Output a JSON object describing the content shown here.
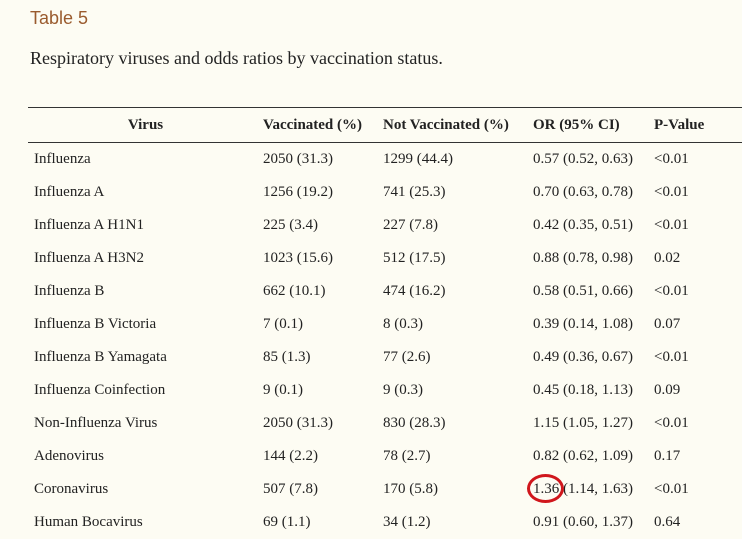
{
  "table_label": "Table 5",
  "caption": "Respiratory viruses and odds ratios by vaccination status.",
  "columns": [
    "Virus",
    "Vaccinated (%)",
    "Not Vaccinated (%)",
    "OR (95% CI)",
    "P-Value"
  ],
  "rows": [
    [
      "Influenza",
      "2050 (31.3)",
      "1299 (44.4)",
      "0.57 (0.52, 0.63)",
      "<0.01"
    ],
    [
      "Influenza A",
      "1256 (19.2)",
      "741 (25.3)",
      "0.70 (0.63, 0.78)",
      "<0.01"
    ],
    [
      "Influenza A H1N1",
      "225 (3.4)",
      "227 (7.8)",
      "0.42 (0.35, 0.51)",
      "<0.01"
    ],
    [
      "Influenza A H3N2",
      "1023 (15.6)",
      "512 (17.5)",
      "0.88 (0.78, 0.98)",
      "0.02"
    ],
    [
      "Influenza B",
      "662 (10.1)",
      "474 (16.2)",
      "0.58 (0.51, 0.66)",
      "<0.01"
    ],
    [
      "Influenza B Victoria",
      "7 (0.1)",
      "8 (0.3)",
      "0.39 (0.14, 1.08)",
      "0.07"
    ],
    [
      "Influenza B Yamagata",
      "85 (1.3)",
      "77 (2.6)",
      "0.49 (0.36, 0.67)",
      "<0.01"
    ],
    [
      "Influenza Coinfection",
      "9 (0.1)",
      "9 (0.3)",
      "0.45 (0.18, 1.13)",
      "0.09"
    ],
    [
      "Non-Influenza Virus",
      "2050 (31.3)",
      "830 (28.3)",
      "1.15 (1.05, 1.27)",
      "<0.01"
    ],
    [
      "Adenovirus",
      "144 (2.2)",
      "78 (2.7)",
      "0.82 (0.62, 1.09)",
      "0.17"
    ],
    [
      "Coronavirus",
      "507 (7.8)",
      "170 (5.8)",
      "1.36 (1.14, 1.63)",
      "<0.01"
    ],
    [
      "Human Bocavirus",
      "69 (1.1)",
      "34 (1.2)",
      "0.91 (0.60, 1.37)",
      "0.64"
    ]
  ],
  "highlighted_row": 10,
  "colors": {
    "label": "#9a5b2e",
    "highlight_ring": "#d0161c",
    "background": "#fdfcf3"
  }
}
